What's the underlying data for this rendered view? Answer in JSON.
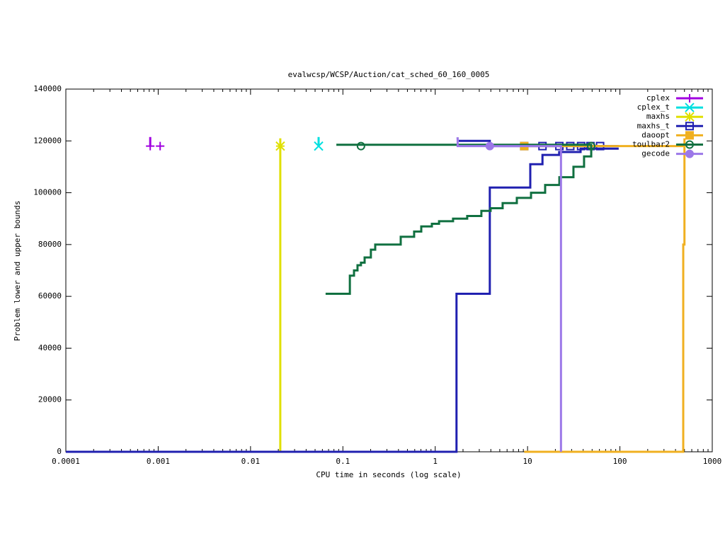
{
  "chart_data": {
    "type": "line",
    "step": true,
    "title": "evalwcsp/WCSP/Auction/cat_sched_60_160_0005",
    "x_label": "CPU time in seconds (log scale)",
    "y_label": "Problem lower and upper bounds",
    "xscale": "log",
    "xlim": [
      0.0001,
      1000
    ],
    "xticks": [
      0.0001,
      0.001,
      0.01,
      0.1,
      1,
      10,
      100,
      1000
    ],
    "ylim": [
      0,
      140000
    ],
    "yticks": [
      0,
      20000,
      40000,
      60000,
      80000,
      100000,
      120000,
      140000
    ],
    "legend": "top right",
    "series": [
      {
        "name": "cplex",
        "color": "#a000e0",
        "marker": "plus",
        "x": [
          0.00082,
          0.00082
        ],
        "values": [
          118000,
          121500
        ],
        "point_x": [
          0.00082,
          0.00105
        ],
        "point_values": [
          118000,
          118000
        ]
      },
      {
        "name": "cplex_t",
        "color": "#00e0e0",
        "marker": "cross",
        "x": [
          0.0546,
          0.0546
        ],
        "values": [
          118000,
          121500
        ],
        "point_x": [
          0.0546
        ],
        "point_values": [
          118000
        ]
      },
      {
        "name": "maxhs",
        "color": "#e0e000",
        "marker": "star",
        "x": [
          0.021,
          0.021
        ],
        "values": [
          0,
          121000
        ],
        "point_x": [
          0.021
        ],
        "point_values": [
          118000
        ]
      },
      {
        "name": "maxhs_t",
        "color": "#2020b0",
        "marker": "square-open",
        "x": [
          0.0001,
          1.7,
          3.9,
          10.7,
          14.5,
          22,
          37.5,
          97
        ],
        "values": [
          0,
          61000,
          102000,
          111000,
          114600,
          115700,
          117000,
          117000
        ],
        "upper_x": [
          1.8,
          3.9,
          97
        ],
        "upper_values": [
          120000,
          118000,
          118000
        ],
        "point_x": [
          9.2,
          14.5,
          22.1,
          29,
          38,
          48,
          61
        ],
        "point_values": [
          118000,
          118000,
          118000,
          118000,
          118000,
          118000,
          118000
        ]
      },
      {
        "name": "daoopt",
        "color": "#f0b020",
        "marker": "square",
        "x": [
          9.2,
          485,
          500
        ],
        "values": [
          0,
          80000,
          121000
        ],
        "upper_x": [
          9.2,
          500
        ],
        "upper_values": [
          118000,
          118000
        ],
        "point_x": [
          9.2
        ],
        "point_values": [
          118000
        ]
      },
      {
        "name": "toulbar2",
        "color": "#107040",
        "marker": "circle-open",
        "x": [
          0.065,
          0.119,
          0.132,
          0.144,
          0.157,
          0.172,
          0.201,
          0.224,
          0.423,
          0.591,
          0.706,
          0.92,
          1.1,
          1.56,
          2.22,
          3.16,
          3.98,
          5.37,
          7.65,
          10.9,
          15.5,
          22.1,
          31.4,
          40.9,
          48.9
        ],
        "values": [
          61000,
          68000,
          70000,
          72000,
          73000,
          75000,
          78000,
          80000,
          83000,
          85000,
          87000,
          88000,
          89000,
          90000,
          91000,
          93000,
          94000,
          96000,
          98000,
          100000,
          103000,
          106000,
          110000,
          114000,
          118000
        ],
        "upper_x": [
          0.085,
          48.9
        ],
        "upper_values": [
          118500,
          118000
        ],
        "point_x": [
          0.157,
          48.9
        ],
        "point_values": [
          118000,
          118000
        ]
      },
      {
        "name": "gecode",
        "color": "#9c78e8",
        "marker": "circle",
        "x": [
          1.7,
          1.75,
          23
        ],
        "values": [
          121000,
          118000,
          0
        ],
        "point_x": [
          3.9
        ],
        "point_values": [
          118000
        ]
      }
    ]
  }
}
